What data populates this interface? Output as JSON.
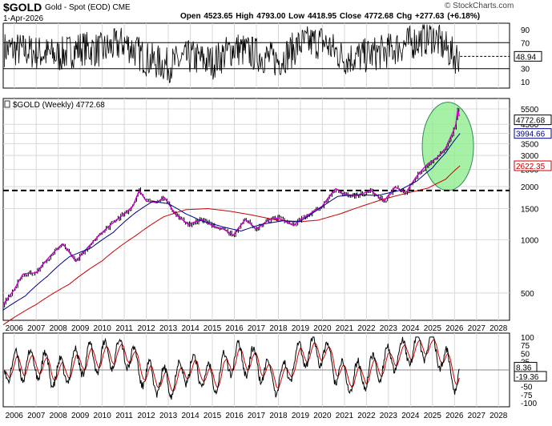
{
  "header": {
    "symbol": "$GOLD",
    "description": "Gold - Spot (EOD) CME",
    "date": "1-Apr-2026",
    "quote": "Open 4523.65  High 4793.00  Low 4418.95  Close 4772.68  Chg +277.63 (+6.18%)",
    "watermark": "© StockCharts.com"
  },
  "main_panel": {
    "label": "$GOLD (Weekly) 4772.68"
  },
  "colors": {
    "price_bar": "#000000",
    "price_overlay": "#cc00cc",
    "ma_short": "#00008b",
    "ma_long": "#cc0000",
    "ellipse_fill": "#90ee90",
    "ellipse_stroke": "#2e8b57",
    "support_line": "#000000",
    "rsi_line": "#000000",
    "osc_line": "#000000",
    "osc_signal": "#cc0000",
    "grid": "#d8d8d8"
  },
  "chart_data": [
    {
      "panel": "top-oscillator",
      "type": "line",
      "ylim": [
        0,
        100
      ],
      "y_ticks": [
        10,
        30,
        50,
        70,
        90
      ],
      "reference_lines": [
        70,
        30
      ],
      "last_value_label": "48.94",
      "x": [
        2006,
        2007,
        2008,
        2009,
        2010,
        2011,
        2012,
        2013,
        2014,
        2015,
        2016,
        2017,
        2018,
        2019,
        2020,
        2021,
        2022,
        2023,
        2024,
        2025,
        2026
      ],
      "values": [
        60,
        55,
        50,
        62,
        58,
        70,
        45,
        35,
        48,
        40,
        62,
        52,
        42,
        68,
        72,
        46,
        50,
        58,
        70,
        80,
        49
      ]
    },
    {
      "panel": "price",
      "type": "line",
      "scale": "log",
      "ylim": [
        350,
        6300
      ],
      "y_ticks": [
        500,
        1000,
        1500,
        2000,
        2500,
        3000,
        3500,
        4000,
        4500,
        5500
      ],
      "x_ticks": [
        "2006",
        "2007",
        "2008",
        "2009",
        "2010",
        "2011",
        "2012",
        "2013",
        "2014",
        "2015",
        "2016",
        "2017",
        "2018",
        "2019",
        "2020",
        "2021",
        "2022",
        "2023",
        "2024",
        "2025",
        "2026",
        "2027",
        "2028"
      ],
      "xlim": [
        2005.5,
        2028.5
      ],
      "series": [
        {
          "role": "price",
          "x": [
            2005.5,
            2006.0,
            2006.4,
            2007.0,
            2007.6,
            2008.2,
            2008.8,
            2009.5,
            2010.0,
            2010.5,
            2011.0,
            2011.4,
            2011.68,
            2012.0,
            2012.5,
            2012.8,
            2013.3,
            2013.9,
            2014.5,
            2015.0,
            2015.5,
            2015.95,
            2016.5,
            2017.0,
            2017.6,
            2018.0,
            2018.7,
            2019.0,
            2019.5,
            2020.0,
            2020.6,
            2021.0,
            2021.6,
            2022.2,
            2022.8,
            2023.3,
            2023.8,
            2024.3,
            2024.8,
            2025.2,
            2025.6,
            2025.9,
            2026.05,
            2026.15,
            2026.25
          ],
          "values": [
            430,
            520,
            640,
            650,
            800,
            950,
            750,
            950,
            1100,
            1250,
            1400,
            1550,
            1900,
            1650,
            1620,
            1750,
            1400,
            1220,
            1300,
            1200,
            1150,
            1060,
            1300,
            1150,
            1300,
            1330,
            1200,
            1300,
            1420,
            1550,
            1950,
            1800,
            1780,
            1900,
            1650,
            1980,
            1850,
            2300,
            2700,
            2900,
            3300,
            4000,
            4400,
            5500,
            4772.68
          ]
        },
        {
          "role": "short-ma",
          "x": [
            2005.5,
            2006.5,
            2007.5,
            2008.5,
            2009.5,
            2010.5,
            2011.5,
            2012.3,
            2013.0,
            2013.8,
            2014.5,
            2015.5,
            2016.3,
            2017.2,
            2018.2,
            2019.0,
            2019.8,
            2020.7,
            2021.5,
            2022.5,
            2023.5,
            2024.3,
            2025.0,
            2025.6,
            2026.25
          ],
          "values": [
            400,
            480,
            620,
            800,
            900,
            1100,
            1420,
            1650,
            1600,
            1400,
            1280,
            1180,
            1120,
            1220,
            1280,
            1270,
            1480,
            1760,
            1800,
            1780,
            1900,
            2150,
            2550,
            3100,
            3994.66
          ]
        },
        {
          "role": "long-ma",
          "x": [
            2005.5,
            2007.0,
            2008.5,
            2010.0,
            2011.5,
            2012.8,
            2013.8,
            2014.8,
            2015.8,
            2016.8,
            2017.8,
            2018.8,
            2019.8,
            2020.8,
            2021.8,
            2022.8,
            2023.8,
            2024.8,
            2025.6,
            2026.25
          ],
          "values": [
            330,
            430,
            560,
            760,
            1050,
            1350,
            1480,
            1500,
            1450,
            1380,
            1300,
            1260,
            1290,
            1400,
            1550,
            1700,
            1830,
            1960,
            2200,
            2622.35
          ]
        }
      ],
      "horizontal_line": 1900,
      "highlight_ellipse": {
        "x_center": 2025.7,
        "y_low": 1900,
        "y_high": 6000
      },
      "price_labels": [
        "4772.68",
        "3994.66",
        "2622.35"
      ]
    },
    {
      "panel": "bottom-oscillator",
      "type": "line",
      "ylim": [
        -112,
        112
      ],
      "y_ticks": [
        100,
        75,
        50,
        25,
        0,
        -25,
        -50,
        -75,
        -100
      ],
      "last_value_labels": [
        "8.36",
        "-19.36"
      ],
      "x_ticks": [
        "2006",
        "2007",
        "2008",
        "2009",
        "2010",
        "2011",
        "2012",
        "2013",
        "2014",
        "2015",
        "2016",
        "2017",
        "2018",
        "2019",
        "2020",
        "2021",
        "2022",
        "2023",
        "2024",
        "2025",
        "2026",
        "2027",
        "2028"
      ],
      "x": [
        2006,
        2007,
        2008,
        2009,
        2010,
        2011,
        2012,
        2013,
        2014,
        2015,
        2016,
        2017,
        2018,
        2019,
        2020,
        2021,
        2022,
        2023,
        2024,
        2025,
        2026
      ],
      "values": [
        10,
        20,
        -15,
        30,
        40,
        60,
        -20,
        -40,
        10,
        -30,
        40,
        20,
        -40,
        50,
        60,
        -30,
        -10,
        30,
        60,
        80,
        -19.36
      ]
    }
  ]
}
